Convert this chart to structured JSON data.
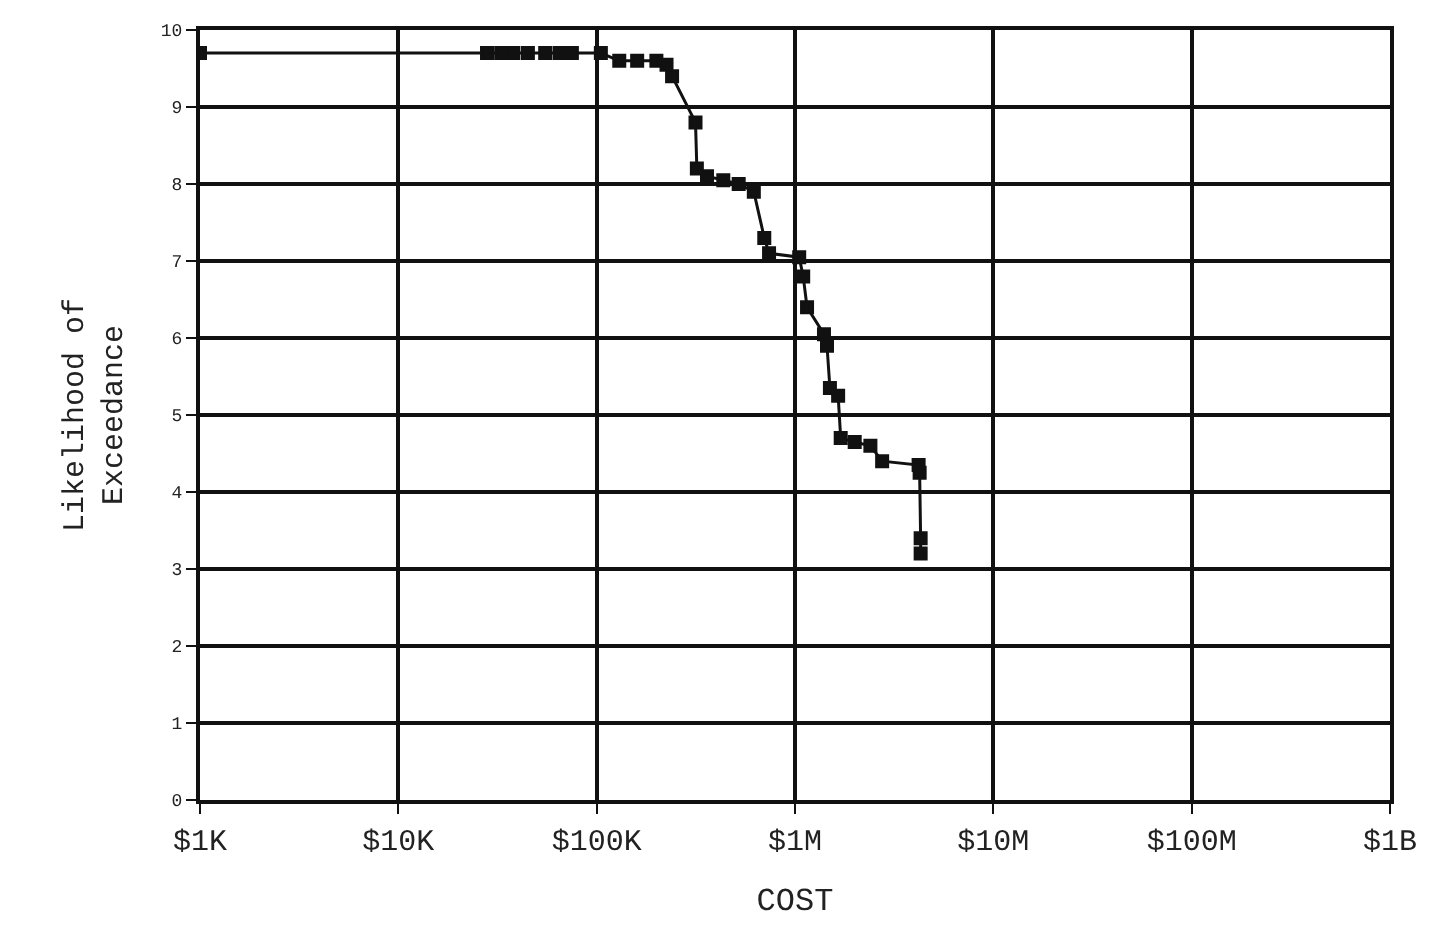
{
  "chart_data": {
    "type": "line",
    "xlabel": "COST",
    "ylabel": "Likelihood of\nExceedance",
    "log": "x",
    "grid": true,
    "marker": "square",
    "line_style": "solid",
    "xlim": [
      1000,
      1000000000
    ],
    "xticks": [
      {
        "value": 1000,
        "label": "$1K"
      },
      {
        "value": 10000,
        "label": "$10K"
      },
      {
        "value": 100000,
        "label": "$100K"
      },
      {
        "value": 1000000,
        "label": "$1M"
      },
      {
        "value": 10000000,
        "label": "$10M"
      },
      {
        "value": 100000000,
        "label": "$100M"
      },
      {
        "value": 1000000000,
        "label": "$1B"
      }
    ],
    "ylim": [
      0,
      10
    ],
    "yticks": [
      0,
      1,
      2,
      3,
      4,
      5,
      6,
      7,
      8,
      9,
      10
    ],
    "series": [
      {
        "color": "#111111",
        "x": [
          1000,
          28000,
          33000,
          38000,
          45000,
          55000,
          65000,
          75000,
          105000,
          130000,
          160000,
          200000,
          225000,
          240000,
          315000,
          320000,
          360000,
          435000,
          520000,
          620000,
          700000,
          740000,
          1050000,
          1100000,
          1150000,
          1400000,
          1450000,
          1500000,
          1650000,
          1700000,
          2000000,
          2400000,
          2750000,
          4200000,
          4250000,
          4300000,
          4300000
        ],
        "values": [
          9.7,
          9.7,
          9.7,
          9.7,
          9.7,
          9.7,
          9.7,
          9.7,
          9.7,
          9.6,
          9.6,
          9.6,
          9.55,
          9.4,
          8.8,
          8.2,
          8.1,
          8.05,
          8.0,
          7.9,
          7.3,
          7.1,
          7.05,
          6.8,
          6.4,
          6.05,
          5.9,
          5.35,
          5.25,
          4.7,
          4.65,
          4.6,
          4.4,
          4.35,
          4.25,
          3.4,
          3.2
        ]
      }
    ]
  }
}
